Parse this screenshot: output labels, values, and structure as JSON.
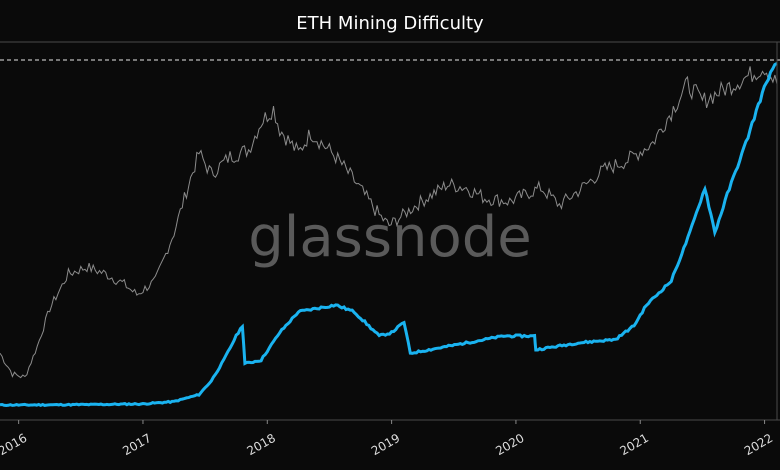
{
  "title": "ETH Mining Difficulty",
  "watermark": "glassnode",
  "chart_data": {
    "type": "line",
    "title": "ETH Mining Difficulty",
    "xlabel": "",
    "ylabel": "",
    "x_tick_labels": [
      "2016",
      "2017",
      "2018",
      "2019",
      "2020",
      "2021",
      "2022"
    ],
    "x_range": [
      2015.85,
      2022.1
    ],
    "grid": false,
    "reference_line": "dashed horizontal line at series peak",
    "colors": {
      "background": "#0a0a0a",
      "difficulty": "#1ab3f0",
      "price": "#8c8c8c",
      "reference": "#e6e6e6",
      "frame": "#4a4a4a",
      "watermark": "#5a5a5a",
      "title": "#ffffff",
      "tick_label": "#dddddd"
    },
    "series": [
      {
        "key": "difficulty",
        "values_relative": [
          [
            2015.85,
            0.0
          ],
          [
            2016.0,
            0.0
          ],
          [
            2016.5,
            0.001
          ],
          [
            2017.0,
            0.003
          ],
          [
            2017.25,
            0.01
          ],
          [
            2017.45,
            0.03
          ],
          [
            2017.55,
            0.07
          ],
          [
            2017.65,
            0.13
          ],
          [
            2017.75,
            0.2
          ],
          [
            2017.8,
            0.23
          ],
          [
            2017.82,
            0.12
          ],
          [
            2017.95,
            0.13
          ],
          [
            2018.1,
            0.21
          ],
          [
            2018.25,
            0.27
          ],
          [
            2018.4,
            0.28
          ],
          [
            2018.55,
            0.29
          ],
          [
            2018.7,
            0.27
          ],
          [
            2018.9,
            0.2
          ],
          [
            2019.0,
            0.21
          ],
          [
            2019.1,
            0.24
          ],
          [
            2019.15,
            0.15
          ],
          [
            2019.3,
            0.16
          ],
          [
            2019.6,
            0.18
          ],
          [
            2019.9,
            0.2
          ],
          [
            2020.0,
            0.2
          ],
          [
            2020.15,
            0.2
          ],
          [
            2020.16,
            0.16
          ],
          [
            2020.5,
            0.18
          ],
          [
            2020.8,
            0.19
          ],
          [
            2020.95,
            0.23
          ],
          [
            2021.05,
            0.29
          ],
          [
            2021.25,
            0.36
          ],
          [
            2021.4,
            0.5
          ],
          [
            2021.52,
            0.63
          ],
          [
            2021.6,
            0.5
          ],
          [
            2021.7,
            0.61
          ],
          [
            2021.85,
            0.76
          ],
          [
            2021.95,
            0.87
          ],
          [
            2022.03,
            0.95
          ],
          [
            2022.1,
            0.99
          ]
        ]
      },
      {
        "key": "price",
        "values_relative": [
          [
            2015.85,
            0.15
          ],
          [
            2015.95,
            0.09
          ],
          [
            2016.05,
            0.08
          ],
          [
            2016.15,
            0.17
          ],
          [
            2016.25,
            0.28
          ],
          [
            2016.4,
            0.38
          ],
          [
            2016.55,
            0.4
          ],
          [
            2016.7,
            0.38
          ],
          [
            2016.85,
            0.35
          ],
          [
            2016.95,
            0.32
          ],
          [
            2017.1,
            0.36
          ],
          [
            2017.25,
            0.5
          ],
          [
            2017.35,
            0.62
          ],
          [
            2017.45,
            0.73
          ],
          [
            2017.55,
            0.67
          ],
          [
            2017.7,
            0.72
          ],
          [
            2017.85,
            0.74
          ],
          [
            2017.95,
            0.82
          ],
          [
            2018.05,
            0.86
          ],
          [
            2018.1,
            0.8
          ],
          [
            2018.25,
            0.73
          ],
          [
            2018.35,
            0.79
          ],
          [
            2018.55,
            0.72
          ],
          [
            2018.7,
            0.65
          ],
          [
            2018.9,
            0.55
          ],
          [
            2018.98,
            0.52
          ],
          [
            2019.2,
            0.58
          ],
          [
            2019.45,
            0.64
          ],
          [
            2019.6,
            0.63
          ],
          [
            2019.75,
            0.6
          ],
          [
            2019.95,
            0.59
          ],
          [
            2020.2,
            0.63
          ],
          [
            2020.35,
            0.58
          ],
          [
            2020.5,
            0.62
          ],
          [
            2020.7,
            0.68
          ],
          [
            2020.9,
            0.71
          ],
          [
            2021.1,
            0.76
          ],
          [
            2021.25,
            0.85
          ],
          [
            2021.38,
            0.93
          ],
          [
            2021.5,
            0.88
          ],
          [
            2021.65,
            0.91
          ],
          [
            2021.85,
            0.95
          ],
          [
            2022.0,
            0.98
          ],
          [
            2022.1,
            0.93
          ]
        ]
      }
    ]
  }
}
